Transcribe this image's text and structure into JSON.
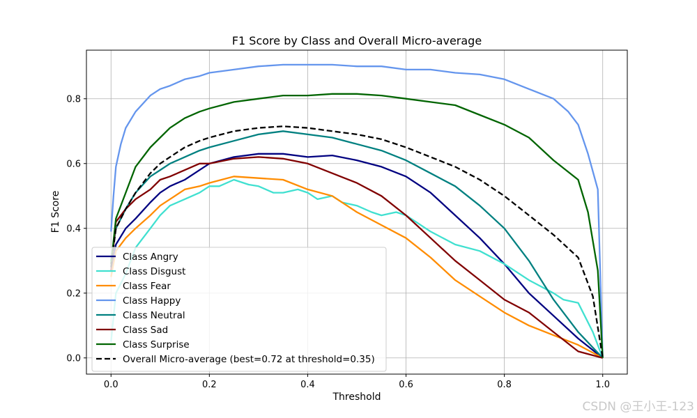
{
  "chart_data": {
    "type": "line",
    "title": "F1 Score by Class and Overall Micro-average",
    "xlabel": "Threshold",
    "ylabel": "F1 Score",
    "xlim": [
      -0.05,
      1.05
    ],
    "ylim": [
      -0.05,
      0.95
    ],
    "xticks": [
      0.0,
      0.2,
      0.4,
      0.6,
      0.8,
      1.0
    ],
    "xtick_labels": [
      "0.0",
      "0.2",
      "0.4",
      "0.6",
      "0.8",
      "1.0"
    ],
    "yticks": [
      0.0,
      0.2,
      0.4,
      0.6,
      0.8
    ],
    "ytick_labels": [
      "0.0",
      "0.2",
      "0.4",
      "0.6",
      "0.8"
    ],
    "grid": true,
    "legend_position": "lower-left",
    "series": [
      {
        "name": "Class Angry",
        "color": "#000080",
        "dash": false,
        "x": [
          0.0,
          0.01,
          0.03,
          0.05,
          0.08,
          0.1,
          0.12,
          0.15,
          0.18,
          0.2,
          0.25,
          0.3,
          0.35,
          0.4,
          0.45,
          0.5,
          0.55,
          0.6,
          0.65,
          0.7,
          0.75,
          0.8,
          0.85,
          0.9,
          0.95,
          1.0
        ],
        "y": [
          0.27,
          0.35,
          0.4,
          0.43,
          0.48,
          0.51,
          0.53,
          0.55,
          0.58,
          0.6,
          0.62,
          0.63,
          0.63,
          0.62,
          0.625,
          0.61,
          0.59,
          0.56,
          0.51,
          0.44,
          0.37,
          0.29,
          0.2,
          0.13,
          0.06,
          0.0
        ]
      },
      {
        "name": "Class Disgust",
        "color": "#40e0d0",
        "dash": false,
        "x": [
          0.0,
          0.01,
          0.03,
          0.05,
          0.08,
          0.1,
          0.12,
          0.15,
          0.18,
          0.2,
          0.22,
          0.25,
          0.28,
          0.3,
          0.33,
          0.35,
          0.38,
          0.4,
          0.42,
          0.45,
          0.47,
          0.5,
          0.53,
          0.55,
          0.58,
          0.6,
          0.65,
          0.7,
          0.75,
          0.8,
          0.85,
          0.9,
          0.92,
          0.95,
          0.98,
          1.0
        ],
        "y": [
          0.05,
          0.2,
          0.26,
          0.34,
          0.4,
          0.44,
          0.47,
          0.49,
          0.51,
          0.53,
          0.53,
          0.55,
          0.535,
          0.53,
          0.51,
          0.51,
          0.52,
          0.51,
          0.49,
          0.5,
          0.48,
          0.47,
          0.45,
          0.44,
          0.45,
          0.44,
          0.39,
          0.35,
          0.33,
          0.29,
          0.24,
          0.2,
          0.18,
          0.17,
          0.08,
          0.0
        ]
      },
      {
        "name": "Class Fear",
        "color": "#ff8c00",
        "dash": false,
        "x": [
          0.0,
          0.01,
          0.03,
          0.05,
          0.08,
          0.1,
          0.12,
          0.15,
          0.18,
          0.2,
          0.25,
          0.3,
          0.35,
          0.4,
          0.45,
          0.5,
          0.55,
          0.6,
          0.65,
          0.7,
          0.75,
          0.8,
          0.85,
          0.9,
          0.95,
          1.0
        ],
        "y": [
          0.25,
          0.33,
          0.37,
          0.4,
          0.44,
          0.47,
          0.49,
          0.52,
          0.53,
          0.54,
          0.56,
          0.555,
          0.55,
          0.52,
          0.5,
          0.45,
          0.41,
          0.37,
          0.31,
          0.24,
          0.19,
          0.14,
          0.1,
          0.07,
          0.04,
          0.0
        ]
      },
      {
        "name": "Class Happy",
        "color": "#6495ed",
        "dash": false,
        "x": [
          0.0,
          0.005,
          0.01,
          0.02,
          0.03,
          0.05,
          0.08,
          0.1,
          0.12,
          0.15,
          0.18,
          0.2,
          0.25,
          0.3,
          0.35,
          0.4,
          0.45,
          0.5,
          0.55,
          0.6,
          0.65,
          0.7,
          0.75,
          0.8,
          0.85,
          0.9,
          0.93,
          0.95,
          0.97,
          0.99,
          1.0
        ],
        "y": [
          0.39,
          0.5,
          0.59,
          0.66,
          0.71,
          0.76,
          0.81,
          0.83,
          0.84,
          0.86,
          0.87,
          0.88,
          0.89,
          0.9,
          0.905,
          0.905,
          0.905,
          0.9,
          0.9,
          0.89,
          0.89,
          0.88,
          0.875,
          0.86,
          0.83,
          0.8,
          0.76,
          0.72,
          0.63,
          0.52,
          0.0
        ]
      },
      {
        "name": "Class Neutral",
        "color": "#008080",
        "dash": false,
        "x": [
          0.0,
          0.01,
          0.03,
          0.05,
          0.08,
          0.1,
          0.12,
          0.15,
          0.18,
          0.2,
          0.25,
          0.3,
          0.35,
          0.4,
          0.45,
          0.5,
          0.55,
          0.6,
          0.65,
          0.7,
          0.75,
          0.8,
          0.85,
          0.9,
          0.95,
          1.0
        ],
        "y": [
          0.3,
          0.4,
          0.46,
          0.51,
          0.56,
          0.58,
          0.6,
          0.62,
          0.64,
          0.65,
          0.67,
          0.69,
          0.7,
          0.69,
          0.68,
          0.66,
          0.64,
          0.61,
          0.57,
          0.53,
          0.47,
          0.4,
          0.3,
          0.18,
          0.08,
          0.0
        ]
      },
      {
        "name": "Class Sad",
        "color": "#800000",
        "dash": false,
        "x": [
          0.0,
          0.01,
          0.03,
          0.05,
          0.08,
          0.1,
          0.12,
          0.15,
          0.18,
          0.2,
          0.25,
          0.3,
          0.35,
          0.4,
          0.45,
          0.5,
          0.55,
          0.6,
          0.65,
          0.7,
          0.75,
          0.8,
          0.85,
          0.9,
          0.95,
          1.0
        ],
        "y": [
          0.27,
          0.42,
          0.46,
          0.49,
          0.52,
          0.55,
          0.56,
          0.58,
          0.6,
          0.6,
          0.615,
          0.62,
          0.615,
          0.6,
          0.57,
          0.54,
          0.5,
          0.44,
          0.37,
          0.3,
          0.24,
          0.18,
          0.14,
          0.08,
          0.02,
          0.0
        ]
      },
      {
        "name": "Class Surprise",
        "color": "#006400",
        "dash": false,
        "x": [
          0.0,
          0.01,
          0.03,
          0.05,
          0.08,
          0.1,
          0.12,
          0.15,
          0.18,
          0.2,
          0.25,
          0.3,
          0.35,
          0.4,
          0.45,
          0.5,
          0.55,
          0.6,
          0.65,
          0.7,
          0.75,
          0.8,
          0.85,
          0.9,
          0.95,
          0.97,
          0.99,
          1.0
        ],
        "y": [
          0.29,
          0.43,
          0.51,
          0.59,
          0.65,
          0.68,
          0.71,
          0.74,
          0.76,
          0.77,
          0.79,
          0.8,
          0.81,
          0.81,
          0.815,
          0.815,
          0.81,
          0.8,
          0.79,
          0.78,
          0.75,
          0.72,
          0.68,
          0.61,
          0.55,
          0.45,
          0.27,
          0.0
        ]
      },
      {
        "name": "Overall Micro-average (best=0.72 at threshold=0.35)",
        "color": "#000000",
        "dash": true,
        "x": [
          0.0,
          0.01,
          0.03,
          0.05,
          0.08,
          0.1,
          0.12,
          0.15,
          0.18,
          0.2,
          0.25,
          0.3,
          0.35,
          0.4,
          0.45,
          0.5,
          0.55,
          0.6,
          0.65,
          0.7,
          0.75,
          0.8,
          0.85,
          0.9,
          0.95,
          0.98,
          1.0
        ],
        "y": [
          0.28,
          0.4,
          0.46,
          0.51,
          0.57,
          0.6,
          0.62,
          0.65,
          0.67,
          0.68,
          0.7,
          0.71,
          0.715,
          0.71,
          0.7,
          0.69,
          0.675,
          0.65,
          0.62,
          0.59,
          0.55,
          0.5,
          0.44,
          0.38,
          0.31,
          0.19,
          0.0
        ]
      }
    ]
  },
  "watermark": "CSDN @王小王-123"
}
